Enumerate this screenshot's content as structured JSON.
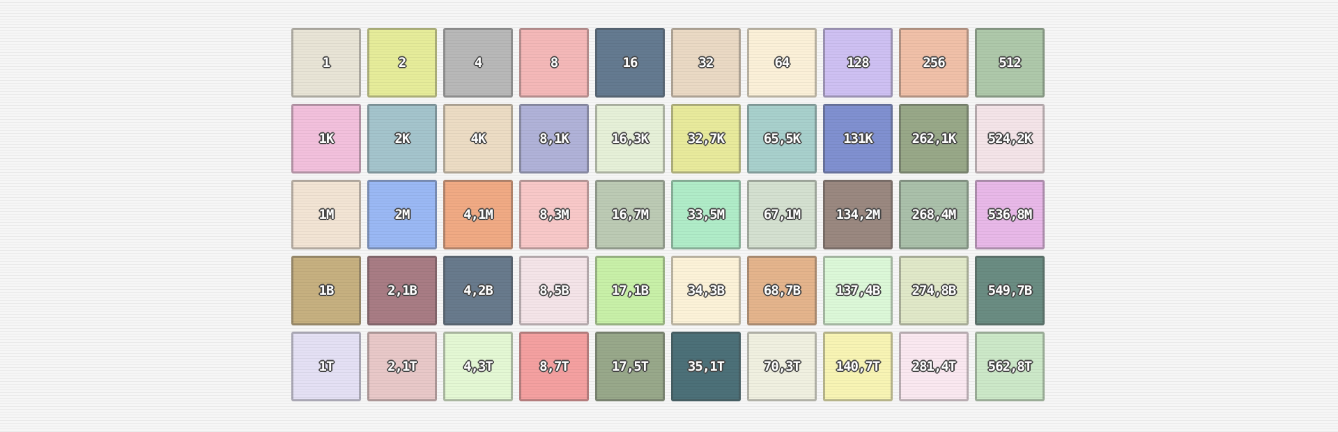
{
  "tiles": [
    [
      {
        "label": "1",
        "color": "#e8e4d6"
      },
      {
        "label": "2",
        "color": "#e6ec9a"
      },
      {
        "label": "4",
        "color": "#b8b8b8"
      },
      {
        "label": "8",
        "color": "#f4b8b8"
      },
      {
        "label": "16",
        "color": "#647a90"
      },
      {
        "label": "32",
        "color": "#ead9c4"
      },
      {
        "label": "64",
        "color": "#fbf0d8"
      },
      {
        "label": "128",
        "color": "#cec0f2"
      },
      {
        "label": "256",
        "color": "#f0c0a8"
      },
      {
        "label": "512",
        "color": "#aec8aa"
      }
    ],
    [
      {
        "label": "1K",
        "color": "#f2c0dc"
      },
      {
        "label": "2K",
        "color": "#a4c4cc"
      },
      {
        "label": "4K",
        "color": "#ecdcc4"
      },
      {
        "label": "8,1K",
        "color": "#b0b2d8"
      },
      {
        "label": "16,3K",
        "color": "#e6f0d8"
      },
      {
        "label": "32,7K",
        "color": "#e8ea9c"
      },
      {
        "label": "65,5K",
        "color": "#a8d0cc"
      },
      {
        "label": "131K",
        "color": "#8090d0"
      },
      {
        "label": "262,1K",
        "color": "#98a888"
      },
      {
        "label": "524,2K",
        "color": "#f4e4e8"
      }
    ],
    [
      {
        "label": "1M",
        "color": "#f2e4d4"
      },
      {
        "label": "2M",
        "color": "#9ab8f4"
      },
      {
        "label": "4,1M",
        "color": "#f0aa84"
      },
      {
        "label": "8,3M",
        "color": "#f8c8c8"
      },
      {
        "label": "16,7M",
        "color": "#bccab4"
      },
      {
        "label": "33,5M",
        "color": "#b0ecc8"
      },
      {
        "label": "67,1M",
        "color": "#d4e0d0"
      },
      {
        "label": "134,2M",
        "color": "#9a8880"
      },
      {
        "label": "268,4M",
        "color": "#aac0aa"
      },
      {
        "label": "536,8M",
        "color": "#e8b8e8"
      }
    ],
    [
      {
        "label": "1B",
        "color": "#c6b080"
      },
      {
        "label": "2,1B",
        "color": "#a87c84"
      },
      {
        "label": "4,2B",
        "color": "#687a8c"
      },
      {
        "label": "8,5B",
        "color": "#f4e4e8"
      },
      {
        "label": "17,1B",
        "color": "#c8f0a8"
      },
      {
        "label": "34,3B",
        "color": "#fcf2d8"
      },
      {
        "label": "68,7B",
        "color": "#e4b48c"
      },
      {
        "label": "137,4B",
        "color": "#dcf8d8"
      },
      {
        "label": "274,8B",
        "color": "#e0e8c8"
      },
      {
        "label": "549,7B",
        "color": "#6a8c82"
      }
    ],
    [
      {
        "label": "1T",
        "color": "#e4e0f4"
      },
      {
        "label": "2,1T",
        "color": "#e8c8c8"
      },
      {
        "label": "4,3T",
        "color": "#e4f8d4"
      },
      {
        "label": "8,7T",
        "color": "#f4a0a0"
      },
      {
        "label": "17,5T",
        "color": "#98a88a"
      },
      {
        "label": "35,1T",
        "color": "#4c7078"
      },
      {
        "label": "70,3T",
        "color": "#f0f0e0"
      },
      {
        "label": "140,7T",
        "color": "#f8f4b4"
      },
      {
        "label": "281,4T",
        "color": "#fae8f0"
      },
      {
        "label": "562,8T",
        "color": "#cce8c8"
      }
    ]
  ]
}
